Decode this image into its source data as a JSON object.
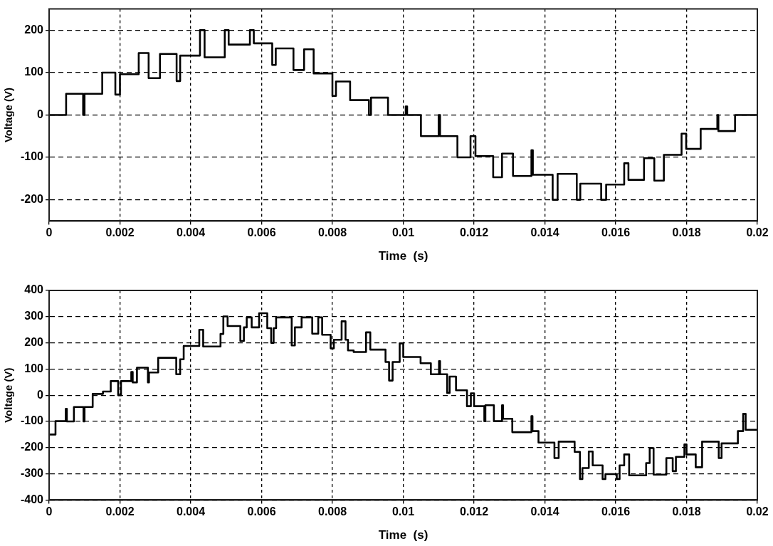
{
  "chart_data": [
    {
      "type": "step",
      "xlabel": "Time  (s)",
      "ylabel": "Voltage (V)",
      "xlim": [
        0,
        0.02
      ],
      "ylim": [
        -250,
        250
      ],
      "xticks": [
        0,
        0.002,
        0.004,
        0.006,
        0.008,
        0.01,
        0.012,
        0.014,
        0.016,
        0.018,
        0.02
      ],
      "yticks": [
        -200,
        -100,
        0,
        100,
        200
      ],
      "grid": true,
      "legend": false,
      "marker": "none",
      "line_style": "solid",
      "series": [
        {
          "color": "#000000",
          "x": [
            0,
            0.00048,
            0.00096,
            0.001,
            0.0015,
            0.00187,
            0.002,
            0.00253,
            0.00281,
            0.00313,
            0.0036,
            0.0037,
            0.00426,
            0.00439,
            0.00496,
            0.00507,
            0.00567,
            0.00578,
            0.0063,
            0.0064,
            0.0069,
            0.0072,
            0.00747,
            0.008,
            0.0081,
            0.0085,
            0.00903,
            0.00909,
            0.00957,
            0.01007,
            0.01011,
            0.0105,
            0.011,
            0.01104,
            0.01153,
            0.0119,
            0.01204,
            0.01254,
            0.01279,
            0.0131,
            0.01362,
            0.01366,
            0.01422,
            0.01436,
            0.0149,
            0.015,
            0.01559,
            0.01573,
            0.01624,
            0.01636,
            0.0168,
            0.01709,
            0.01736,
            0.01786,
            0.01799,
            0.0184,
            0.01887,
            0.0189,
            0.01937,
            0.02
          ],
          "values": [
            0,
            50,
            0,
            50,
            100,
            48,
            96,
            146,
            87,
            144,
            80,
            140,
            200,
            136,
            200,
            166,
            200,
            169,
            118,
            157,
            106,
            155,
            98,
            45,
            79,
            35,
            0,
            41,
            0,
            20,
            0,
            -50,
            0,
            -50,
            -100,
            -50,
            -97,
            -147,
            -91,
            -144,
            -83,
            -141,
            -200,
            -139,
            -200,
            -162,
            -200,
            -164,
            -114,
            -153,
            -102,
            -155,
            -94,
            -44,
            -80,
            -33,
            0,
            -38,
            0,
            0
          ]
        }
      ]
    },
    {
      "type": "step",
      "xlabel": "Time  (s)",
      "ylabel": "Voltage (V)",
      "xlim": [
        0,
        0.02
      ],
      "ylim": [
        -400,
        400
      ],
      "xticks": [
        0,
        0.002,
        0.004,
        0.006,
        0.008,
        0.01,
        0.012,
        0.014,
        0.016,
        0.018,
        0.02
      ],
      "yticks": [
        -400,
        -300,
        -200,
        -100,
        0,
        100,
        200,
        300,
        400
      ],
      "grid": true,
      "legend": false,
      "marker": "none",
      "line_style": "solid",
      "series": [
        {
          "color": "#000000",
          "x": [
            0,
            0.00018,
            0.00047,
            0.0005,
            0.0007,
            0.00097,
            0.001,
            0.00123,
            0.00152,
            0.00174,
            0.00195,
            0.00203,
            0.00232,
            0.00236,
            0.00248,
            0.00279,
            0.00282,
            0.00308,
            0.00359,
            0.0037,
            0.0038,
            0.00424,
            0.00435,
            0.00484,
            0.00492,
            0.00504,
            0.0054,
            0.0055,
            0.00558,
            0.00572,
            0.00593,
            0.00616,
            0.00627,
            0.00634,
            0.00641,
            0.00685,
            0.00694,
            0.00713,
            0.00743,
            0.0076,
            0.00771,
            0.00795,
            0.00804,
            0.00826,
            0.00837,
            0.00844,
            0.0086,
            0.00895,
            0.00907,
            0.0095,
            0.0096,
            0.0097,
            0.0099,
            0.01,
            0.01049,
            0.01078,
            0.01101,
            0.01104,
            0.01124,
            0.01131,
            0.01149,
            0.0118,
            0.01191,
            0.012,
            0.01229,
            0.01232,
            0.01256,
            0.01279,
            0.01282,
            0.01308,
            0.01362,
            0.01365,
            0.01382,
            0.01427,
            0.01439,
            0.01484,
            0.01499,
            0.01506,
            0.01524,
            0.01535,
            0.01563,
            0.01571,
            0.01603,
            0.01611,
            0.01624,
            0.01638,
            0.01686,
            0.01696,
            0.01707,
            0.01743,
            0.01761,
            0.0177,
            0.01794,
            0.018,
            0.01826,
            0.01844,
            0.01891,
            0.01899,
            0.01945,
            0.0196,
            0.01967,
            0.02
          ],
          "values": [
            -150,
            -99,
            -52,
            -100,
            -45,
            -100,
            -45,
            5,
            14,
            54,
            0,
            54,
            89,
            49,
            105,
            49,
            87,
            143,
            80,
            137,
            188,
            250,
            186,
            234,
            301,
            264,
            207,
            259,
            297,
            259,
            313,
            256,
            200,
            256,
            297,
            190,
            259,
            297,
            235,
            297,
            231,
            179,
            212,
            282,
            212,
            171,
            165,
            240,
            174,
            127,
            56,
            127,
            198,
            146,
            122,
            80,
            130,
            80,
            9,
            71,
            19,
            -42,
            7,
            -42,
            -99,
            -38,
            -99,
            -38,
            -90,
            -141,
            -80,
            -137,
            -181,
            -240,
            -177,
            -216,
            -320,
            -278,
            -215,
            -268,
            -320,
            -301,
            -320,
            -268,
            -226,
            -306,
            -259,
            -202,
            -303,
            -240,
            -290,
            -235,
            -188,
            -226,
            -275,
            -177,
            -240,
            -184,
            -137,
            -71,
            -132,
            -132
          ]
        }
      ]
    }
  ]
}
